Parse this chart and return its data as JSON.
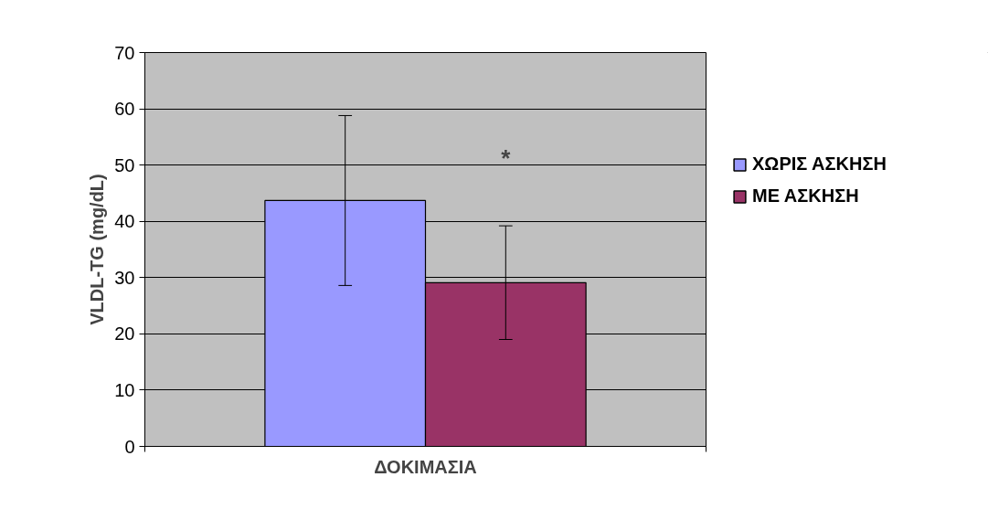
{
  "chart_data": {
    "type": "bar",
    "xlabel": "ΔΟΚΙΜΑΣΙΑ",
    "ylabel": "VLDL-TG (mg/dL)",
    "categories": [
      null
    ],
    "series": [
      {
        "name": "ΧΩΡΙΣ ΑΣΚΗΣΗ",
        "color": "#9999ff",
        "values": [
          43.7
        ],
        "errors": [
          15.1
        ]
      },
      {
        "name": "ΜΕ ΑΣΚΗΣΗ",
        "color": "#993366",
        "values": [
          29.1
        ],
        "errors": [
          10.1
        ]
      }
    ],
    "annotations": [
      "*"
    ],
    "ylim": [
      0,
      70
    ],
    "yticks": [
      0,
      10,
      20,
      30,
      40,
      50,
      60,
      70
    ],
    "grid": "y",
    "legend": "right"
  }
}
